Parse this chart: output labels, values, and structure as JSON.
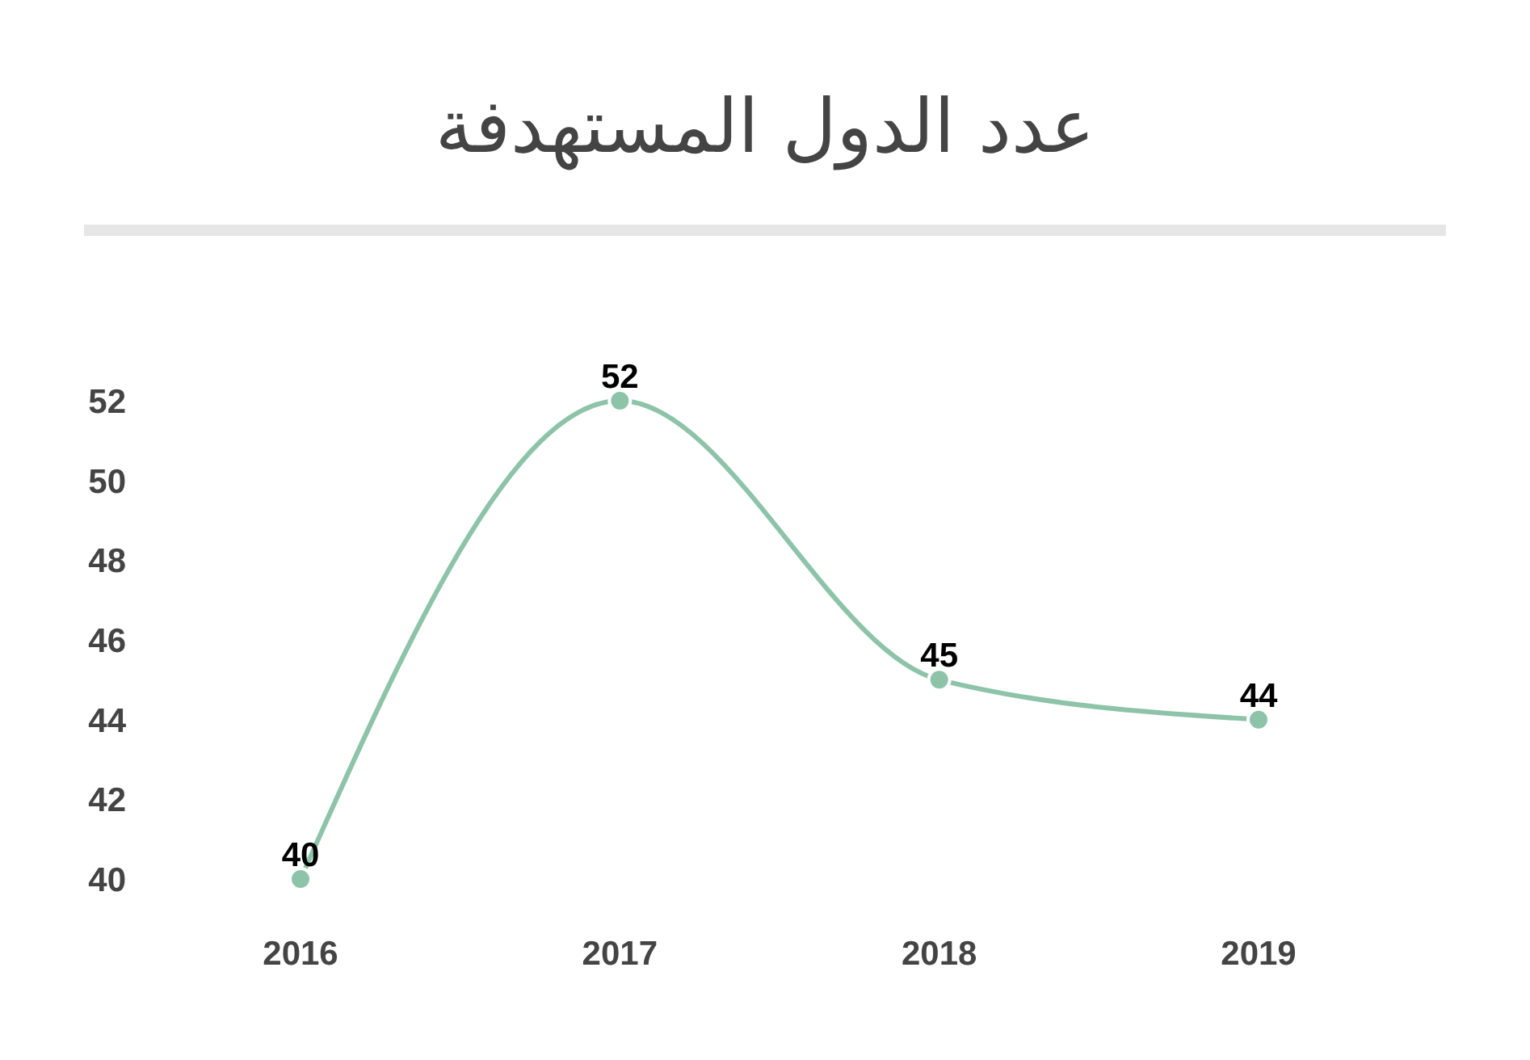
{
  "chart_data": {
    "type": "line",
    "title": "عدد الدول المستهدفة",
    "categories": [
      "2016",
      "2017",
      "2018",
      "2019"
    ],
    "series": [
      {
        "color": "#8dc4a9",
        "values": [
          40,
          52,
          45,
          44
        ]
      }
    ],
    "ylim": [
      40,
      52
    ],
    "yticks": [
      40,
      42,
      44,
      46,
      48,
      50,
      52
    ],
    "data_labels": true,
    "marker": "circle",
    "line_style": "solid"
  }
}
